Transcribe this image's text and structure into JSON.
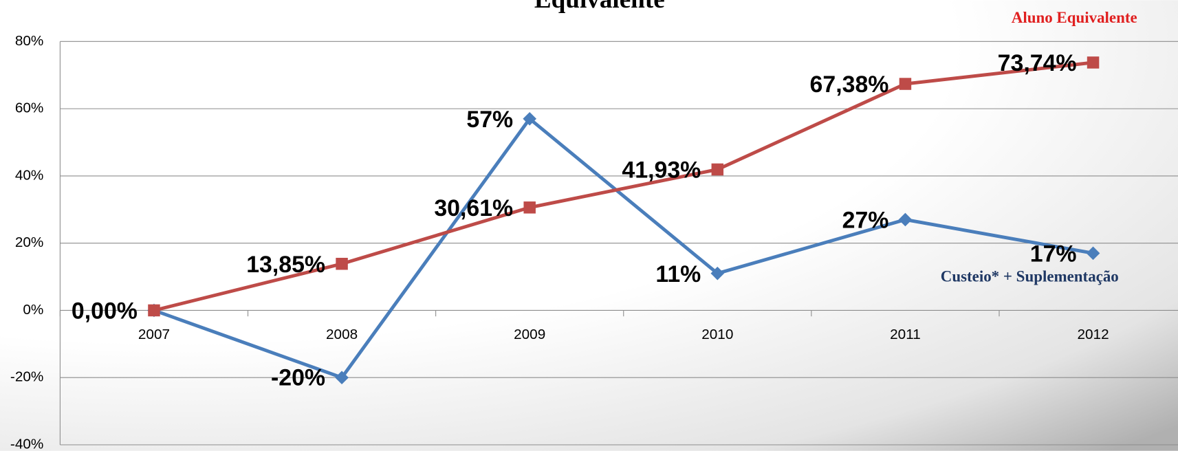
{
  "chart_data": {
    "type": "line",
    "title": "Equivalente",
    "categories": [
      "2007",
      "2008",
      "2009",
      "2010",
      "2011",
      "2012"
    ],
    "series": [
      {
        "name": "Custeio* + Suplementação",
        "color": "#4a7ebb",
        "marker": "diamond",
        "values": [
          0,
          -20,
          57,
          11,
          27,
          17
        ],
        "value_labels": [
          null,
          "-20%",
          "57%",
          "11%",
          "27%",
          "17%"
        ]
      },
      {
        "name": "Aluno Equivalente",
        "color": "#be4b48",
        "marker": "square",
        "values": [
          0,
          13.85,
          30.61,
          41.93,
          67.38,
          73.74
        ],
        "value_labels": [
          "0,00%",
          "13,85%",
          "30,61%",
          "41,93%",
          "67,38%",
          "73,74%"
        ]
      }
    ],
    "ylim": [
      -40,
      80
    ],
    "yticks": [
      {
        "value": -40,
        "label": "-40%"
      },
      {
        "value": -20,
        "label": "-20%"
      },
      {
        "value": 0,
        "label": "0%"
      },
      {
        "value": 20,
        "label": "20%"
      },
      {
        "value": 40,
        "label": "40%"
      },
      {
        "value": 60,
        "label": "60%"
      },
      {
        "value": 80,
        "label": "80%"
      }
    ],
    "grid": true
  }
}
